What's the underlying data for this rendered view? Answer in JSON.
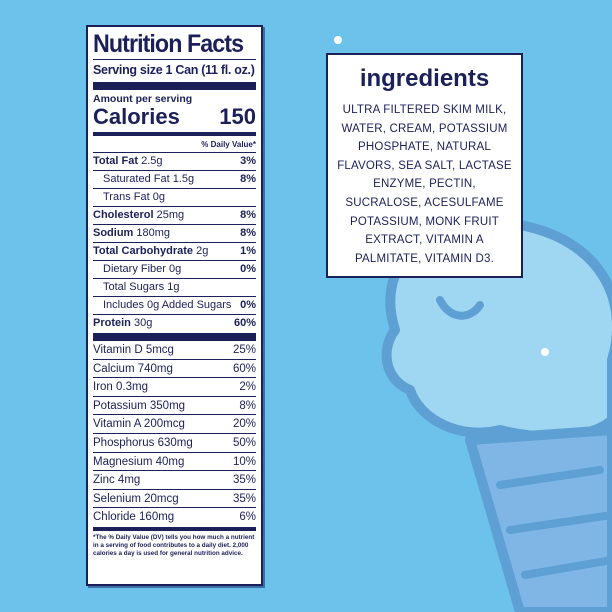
{
  "colors": {
    "background": "#6cc2ea",
    "navy": "#1b2058",
    "illustration": "#9fd6f1"
  },
  "nutrition": {
    "title": "Nutrition Facts",
    "serving_size": "Serving size  1 Can (11 fl. oz.)",
    "amount_per_serving": "Amount per serving",
    "calories_label": "Calories",
    "calories_value": "150",
    "daily_value_header": "% Daily Value*",
    "nutrients": [
      {
        "name": "Total Fat",
        "amount": "2.5g",
        "dv": "3%",
        "bold": true
      },
      {
        "name": "Saturated Fat",
        "amount": "1.5g",
        "dv": "8%"
      },
      {
        "name": "Trans Fat",
        "amount": "0g",
        "dv": ""
      },
      {
        "name": "Cholesterol",
        "amount": "25mg",
        "dv": "8%",
        "bold": true
      },
      {
        "name": "Sodium",
        "amount": "180mg",
        "dv": "8%",
        "bold": true
      },
      {
        "name": "Total Carbohydrate",
        "amount": "2g",
        "dv": "1%",
        "bold": true
      },
      {
        "name": "Dietary Fiber",
        "amount": "0g",
        "dv": "0%"
      },
      {
        "name": "Total Sugars",
        "amount": "1g",
        "dv": ""
      },
      {
        "name": "Includes 0g Added Sugars",
        "amount": "",
        "dv": "0%"
      },
      {
        "name": "Protein",
        "amount": "30g",
        "dv": "60%",
        "bold": true
      }
    ],
    "vitamins": [
      {
        "label": "Vitamin D 5mcg",
        "dv": "25%"
      },
      {
        "label": "Calcium 740mg",
        "dv": "60%"
      },
      {
        "label": "Iron 0.3mg",
        "dv": "2%"
      },
      {
        "label": "Potassium 350mg",
        "dv": "8%"
      },
      {
        "label": "Vitamin A 200mcg",
        "dv": "20%"
      },
      {
        "label": "Phosphorus 630mg",
        "dv": "50%"
      },
      {
        "label": "Magnesium 40mg",
        "dv": "10%"
      },
      {
        "label": "Zinc 4mg",
        "dv": "35%"
      },
      {
        "label": "Selenium 20mcg",
        "dv": "35%"
      },
      {
        "label": "Chloride 160mg",
        "dv": "6%"
      }
    ],
    "footnote": "*The % Daily Value (DV) tells you how much a nutrient in a serving of food contributes to a daily diet. 2,000 calories a day is used for general nutrition advice."
  },
  "ingredients": {
    "title": "ingredients",
    "text": "ULTRA FILTERED SKIM MILK, WATER, CREAM, POTASSIUM PHOSPHATE, NATURAL FLAVORS, SEA SALT, LACTASE ENZYME, PECTIN, SUCRALOSE, ACESULFAME POTASSIUM, MONK FRUIT EXTRACT, VITAMIN A PALMITATE, VITAMIN D3."
  }
}
